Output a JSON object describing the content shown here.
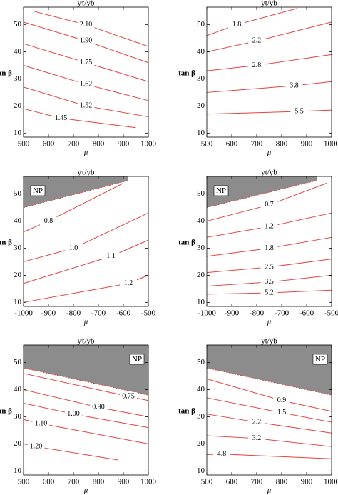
{
  "chart_data": [
    {
      "type": "contour",
      "title": "yτ/yb",
      "x_label": "μ",
      "y_label": "tan β",
      "xlim": [
        500,
        1000
      ],
      "xticks": [
        500,
        600,
        700,
        800,
        900,
        1000
      ],
      "ylim": [
        8.5,
        56.5
      ],
      "yticks": [
        10,
        20,
        30,
        40,
        50
      ],
      "color": "#e8413c",
      "contours": [
        {
          "level": "2.10",
          "x": [
            540,
            750,
            1000
          ],
          "y": [
            55,
            50,
            42
          ]
        },
        {
          "level": "1.90",
          "x": [
            500,
            750,
            1000
          ],
          "y": [
            51,
            44,
            36
          ]
        },
        {
          "level": "1.75",
          "x": [
            500,
            750,
            1000
          ],
          "y": [
            43,
            36,
            29
          ]
        },
        {
          "level": "1.62",
          "x": [
            500,
            750,
            1000
          ],
          "y": [
            35,
            28,
            22
          ]
        },
        {
          "level": "1.52",
          "x": [
            500,
            750,
            1000
          ],
          "y": [
            27,
            20,
            16
          ]
        },
        {
          "level": "1.45",
          "x": [
            500,
            650,
            950
          ],
          "y": [
            19,
            15.5,
            12
          ]
        }
      ]
    },
    {
      "type": "contour",
      "title": "yt/yb",
      "x_label": "μ",
      "y_label": "tan β",
      "xlim": [
        500,
        1000
      ],
      "xticks": [
        500,
        600,
        700,
        800,
        900,
        1000
      ],
      "ylim": [
        8.5,
        56.5
      ],
      "yticks": [
        10,
        20,
        30,
        40,
        50
      ],
      "color": "#e8413c",
      "contours": [
        {
          "level": "1.8",
          "x": [
            500,
            620,
            860
          ],
          "y": [
            46,
            50,
            56
          ]
        },
        {
          "level": "2.2",
          "x": [
            500,
            700,
            1000
          ],
          "y": [
            40,
            44,
            51
          ]
        },
        {
          "level": "2.8",
          "x": [
            500,
            700,
            1000
          ],
          "y": [
            33,
            35,
            39
          ]
        },
        {
          "level": "3.8",
          "x": [
            500,
            850,
            1000
          ],
          "y": [
            25,
            27.5,
            29
          ]
        },
        {
          "level": "5.5",
          "x": [
            500,
            870,
            1000
          ],
          "y": [
            17,
            18,
            18.5
          ]
        }
      ]
    },
    {
      "type": "contour",
      "title": "yτ/yb",
      "x_label": "μ",
      "y_label": "tan β",
      "xlim": [
        -1000,
        -500
      ],
      "xticks": [
        -1000,
        -900,
        -800,
        -700,
        -600,
        -500
      ],
      "ylim": [
        8.5,
        56.5
      ],
      "yticks": [
        10,
        20,
        30,
        40,
        50
      ],
      "color": "#e8413c",
      "region": {
        "label": "NP",
        "label_corner": "top-left",
        "color": "#8c8c8c",
        "x": [
          -1000,
          -580
        ],
        "y": [
          45,
          55
        ]
      },
      "contours": [
        {
          "level": "0.8",
          "x": [
            -1000,
            -900,
            -600
          ],
          "y": [
            36,
            40,
            54
          ]
        },
        {
          "level": "1.0",
          "x": [
            -1000,
            -800,
            -500
          ],
          "y": [
            25,
            30,
            43
          ]
        },
        {
          "level": "1.1",
          "x": [
            -1000,
            -650,
            -500
          ],
          "y": [
            17,
            27,
            33
          ]
        },
        {
          "level": "1.2",
          "x": [
            -1000,
            -580,
            -500
          ],
          "y": [
            10,
            17,
            20
          ]
        }
      ]
    },
    {
      "type": "contour",
      "title": "yt/yb",
      "x_label": "μ",
      "y_label": "tan β",
      "xlim": [
        -1000,
        -500
      ],
      "xticks": [
        -1000,
        -900,
        -800,
        -700,
        -600,
        -500
      ],
      "ylim": [
        8.5,
        56.5
      ],
      "yticks": [
        10,
        20,
        30,
        40,
        50
      ],
      "color": "#e8413c",
      "region": {
        "label": "NP",
        "label_corner": "top-left",
        "color": "#8c8c8c",
        "x": [
          -1000,
          -560
        ],
        "y": [
          45,
          55
        ]
      },
      "contours": [
        {
          "level": "0.7",
          "x": [
            -1000,
            -750,
            -520
          ],
          "y": [
            40,
            46,
            54
          ]
        },
        {
          "level": "1.2",
          "x": [
            -1000,
            -750,
            -500
          ],
          "y": [
            34,
            38,
            43
          ]
        },
        {
          "level": "1.8",
          "x": [
            -1000,
            -750,
            -500
          ],
          "y": [
            27,
            30,
            34
          ]
        },
        {
          "level": "2.5",
          "x": [
            -1000,
            -750,
            -500
          ],
          "y": [
            21,
            23,
            26
          ]
        },
        {
          "level": "3.5",
          "x": [
            -1000,
            -750,
            -500
          ],
          "y": [
            16,
            17.5,
            20
          ]
        },
        {
          "level": "5.2",
          "x": [
            -1000,
            -750,
            -500
          ],
          "y": [
            13,
            13.5,
            14.5
          ]
        }
      ]
    },
    {
      "type": "contour",
      "title": "yτ/yb",
      "x_label": "μ",
      "y_label": "tan β",
      "xlim": [
        500,
        1000
      ],
      "xticks": [
        500,
        600,
        700,
        800,
        900,
        1000
      ],
      "ylim": [
        8.5,
        56.5
      ],
      "yticks": [
        10,
        20,
        30,
        40,
        50
      ],
      "color": "#e8413c",
      "region": {
        "label": "NP",
        "label_corner": "top-right",
        "color": "#8c8c8c",
        "x": [
          500,
          1000
        ],
        "y": [
          48,
          38
        ]
      },
      "contours": [
        {
          "level": "0.75",
          "x": [
            500,
            920,
            1000
          ],
          "y": [
            46,
            37.5,
            36
          ]
        },
        {
          "level": "0.90",
          "x": [
            500,
            800,
            1000
          ],
          "y": [
            40,
            33.5,
            30
          ]
        },
        {
          "level": "1.00",
          "x": [
            500,
            700,
            1000
          ],
          "y": [
            35,
            31,
            26
          ]
        },
        {
          "level": "1.10",
          "x": [
            500,
            570,
            1000
          ],
          "y": [
            29,
            27.5,
            20
          ]
        },
        {
          "level": "1.20",
          "x": [
            500,
            550,
            880
          ],
          "y": [
            20,
            19,
            14
          ]
        }
      ]
    },
    {
      "type": "contour",
      "title": "yt/yb",
      "x_label": "μ",
      "y_label": "tan β",
      "xlim": [
        500,
        1000
      ],
      "xticks": [
        500,
        600,
        700,
        800,
        900,
        1000
      ],
      "ylim": [
        8.5,
        56.5
      ],
      "yticks": [
        10,
        20,
        30,
        40,
        50
      ],
      "color": "#e8413c",
      "region": {
        "label": "NP",
        "label_corner": "top-right",
        "color": "#8c8c8c",
        "x": [
          500,
          1000
        ],
        "y": [
          48,
          38
        ]
      },
      "contours": [
        {
          "level": "0.9",
          "x": [
            500,
            800,
            1000
          ],
          "y": [
            44,
            36,
            32
          ]
        },
        {
          "level": "1.5",
          "x": [
            500,
            800,
            1000
          ],
          "y": [
            37,
            31.5,
            28
          ]
        },
        {
          "level": "2.2",
          "x": [
            500,
            700,
            1000
          ],
          "y": [
            31,
            28,
            24
          ]
        },
        {
          "level": "3.2",
          "x": [
            500,
            700,
            1000
          ],
          "y": [
            23,
            22,
            19
          ]
        },
        {
          "level": "4.8",
          "x": [
            500,
            560,
            1000
          ],
          "y": [
            16,
            16.2,
            14.5
          ]
        }
      ]
    }
  ]
}
